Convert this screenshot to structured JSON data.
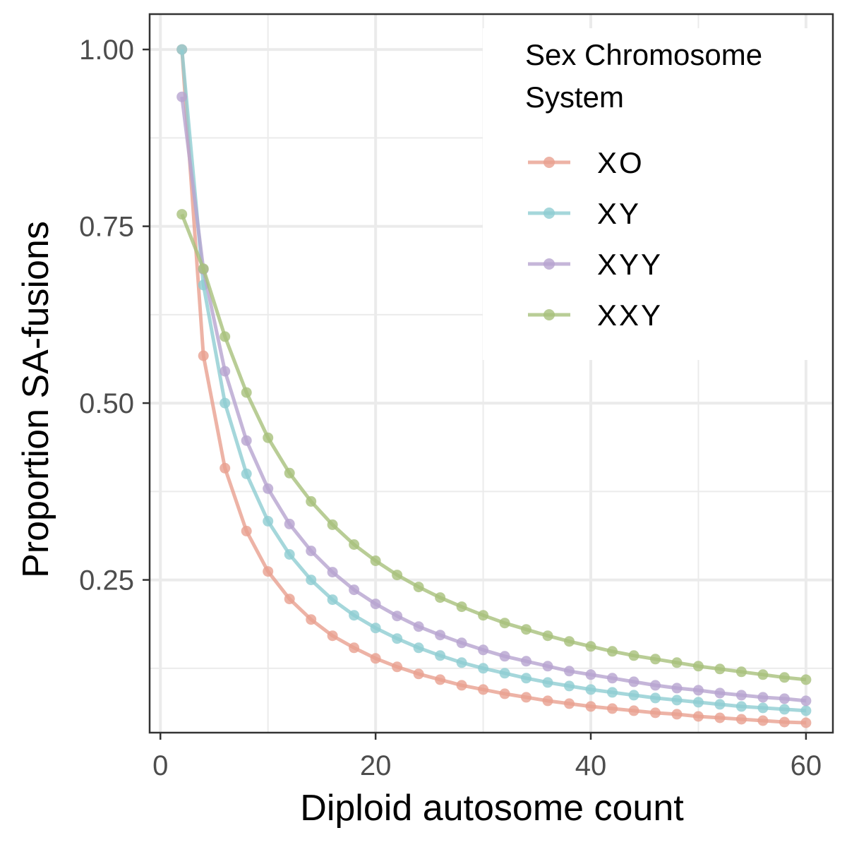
{
  "chart_data": {
    "type": "line",
    "xlabel": "Diploid autosome count",
    "ylabel": "Proportion SA-fusions",
    "xlim": [
      -1,
      62.5
    ],
    "ylim": [
      0.034,
      1.05
    ],
    "x_ticks": [
      0,
      20,
      40,
      60
    ],
    "x_tick_labels": [
      "0",
      "20",
      "40",
      "60"
    ],
    "y_ticks": [
      0.25,
      0.5,
      0.75,
      1.0
    ],
    "y_tick_labels": [
      "0.25",
      "0.50",
      "0.75",
      "1.00"
    ],
    "grid": true,
    "legend": {
      "title_lines": [
        "Sex Chromosome",
        "System"
      ],
      "position": "top-right"
    },
    "x": [
      2,
      4,
      6,
      8,
      10,
      12,
      14,
      16,
      18,
      20,
      22,
      24,
      26,
      28,
      30,
      32,
      34,
      36,
      38,
      40,
      42,
      44,
      46,
      48,
      50,
      52,
      54,
      56,
      58,
      60
    ],
    "series": [
      {
        "name": "XO",
        "color": "#E8A090",
        "values": [
          1.0,
          0.567,
          0.408,
          0.319,
          0.262,
          0.223,
          0.194,
          0.171,
          0.154,
          0.139,
          0.127,
          0.117,
          0.109,
          0.101,
          0.095,
          0.089,
          0.084,
          0.079,
          0.075,
          0.071,
          0.068,
          0.065,
          0.062,
          0.06,
          0.057,
          0.055,
          0.053,
          0.051,
          0.049,
          0.048
        ]
      },
      {
        "name": "XY",
        "color": "#8ECDD2",
        "values": [
          1.0,
          0.667,
          0.5,
          0.4,
          0.333,
          0.286,
          0.25,
          0.222,
          0.2,
          0.182,
          0.167,
          0.154,
          0.143,
          0.133,
          0.125,
          0.118,
          0.111,
          0.105,
          0.1,
          0.095,
          0.091,
          0.087,
          0.083,
          0.08,
          0.077,
          0.074,
          0.071,
          0.069,
          0.067,
          0.065
        ]
      },
      {
        "name": "XYY",
        "color": "#B6A4CF",
        "values": [
          0.933,
          0.689,
          0.545,
          0.447,
          0.379,
          0.329,
          0.291,
          0.261,
          0.236,
          0.216,
          0.199,
          0.184,
          0.172,
          0.161,
          0.151,
          0.142,
          0.135,
          0.128,
          0.121,
          0.116,
          0.111,
          0.106,
          0.101,
          0.097,
          0.094,
          0.09,
          0.087,
          0.084,
          0.082,
          0.079
        ]
      },
      {
        "name": "XXY",
        "color": "#A7C17C",
        "values": [
          0.767,
          0.69,
          0.594,
          0.515,
          0.451,
          0.401,
          0.361,
          0.328,
          0.3,
          0.277,
          0.257,
          0.24,
          0.225,
          0.212,
          0.2,
          0.189,
          0.18,
          0.171,
          0.163,
          0.156,
          0.149,
          0.143,
          0.138,
          0.133,
          0.128,
          0.124,
          0.12,
          0.116,
          0.112,
          0.109
        ]
      }
    ]
  }
}
